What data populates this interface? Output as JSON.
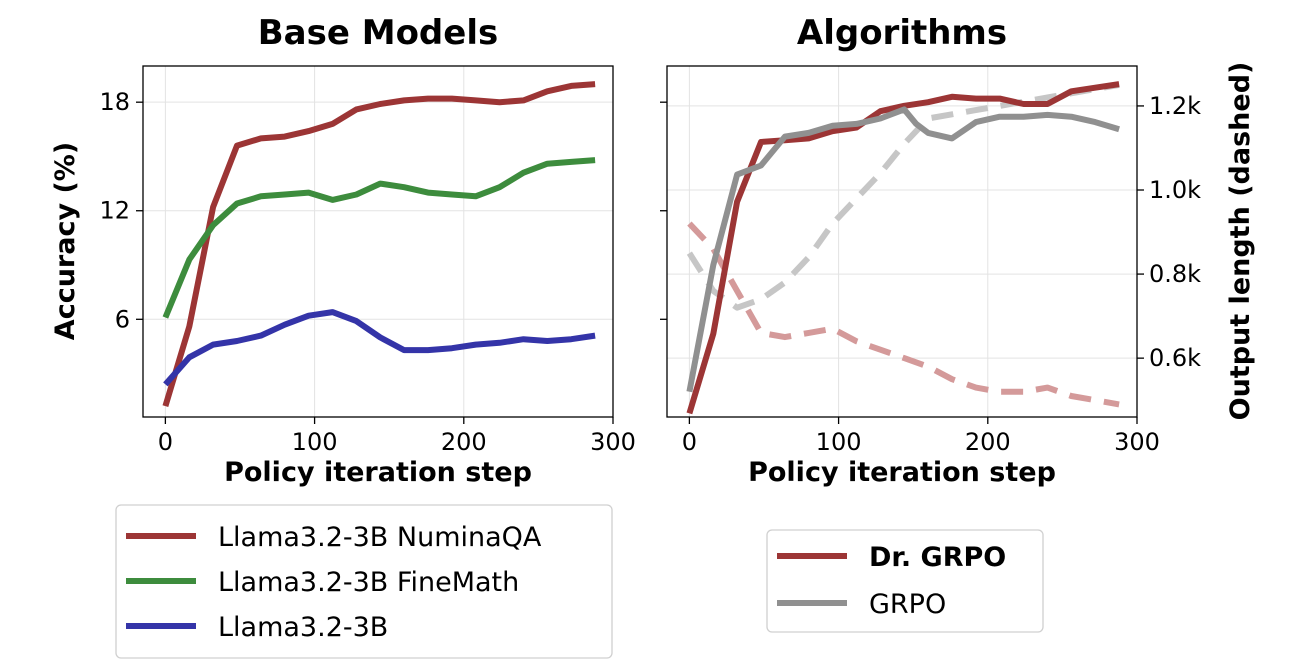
{
  "chart_data": [
    {
      "type": "line",
      "title": "Base Models",
      "xlabel": "Policy iteration step",
      "ylabel": "Accuracy (%)",
      "xlim": [
        -15,
        300
      ],
      "ylim": [
        0.6,
        20.0
      ],
      "xticks": [
        0,
        100,
        200,
        300
      ],
      "yticks": [
        6,
        12,
        18
      ],
      "grid": true,
      "legend": "below",
      "series": [
        {
          "name": "Llama3.2-3B NuminaQA",
          "color": "#9c3535",
          "x": [
            0,
            16,
            32,
            48,
            64,
            80,
            96,
            112,
            128,
            144,
            160,
            176,
            192,
            208,
            224,
            240,
            256,
            272,
            288
          ],
          "y": [
            1.2,
            5.6,
            12.2,
            15.6,
            16.0,
            16.1,
            16.4,
            16.8,
            17.6,
            17.9,
            18.1,
            18.2,
            18.2,
            18.1,
            18.0,
            18.1,
            18.6,
            18.9,
            19.0
          ]
        },
        {
          "name": "Llama3.2-3B FineMath",
          "color": "#3d8c3d",
          "x": [
            0,
            16,
            32,
            48,
            64,
            80,
            96,
            112,
            128,
            144,
            160,
            176,
            192,
            208,
            224,
            240,
            256,
            272,
            288
          ],
          "y": [
            6.1,
            9.3,
            11.2,
            12.4,
            12.8,
            12.9,
            13.0,
            12.6,
            12.9,
            13.5,
            13.3,
            13.0,
            12.9,
            12.8,
            13.3,
            14.1,
            14.6,
            14.7,
            14.8
          ]
        },
        {
          "name": "Llama3.2-3B",
          "color": "#3434a8",
          "x": [
            0,
            16,
            32,
            48,
            64,
            80,
            96,
            112,
            128,
            144,
            160,
            176,
            192,
            208,
            224,
            240,
            256,
            272,
            288
          ],
          "y": [
            2.4,
            3.9,
            4.6,
            4.8,
            5.1,
            5.7,
            6.2,
            6.4,
            5.9,
            5.0,
            4.3,
            4.3,
            4.4,
            4.6,
            4.7,
            4.9,
            4.8,
            4.9,
            5.1
          ]
        }
      ]
    },
    {
      "type": "line",
      "title": "Algorithms",
      "xlabel": "Policy iteration step",
      "ylabel": "",
      "y2label": "Output length (dashed)",
      "xlim": [
        -15,
        300
      ],
      "xticks": [
        0,
        100,
        200,
        300
      ],
      "ylim": [
        0.6,
        20.0
      ],
      "y2lim": [
        0.46,
        1.295
      ],
      "y2ticks": [
        0.6,
        0.8,
        1.0,
        1.2
      ],
      "y2ticklabels": [
        "0.6k",
        "0.8k",
        "1.0k",
        "1.2k"
      ],
      "grid": true,
      "legend": "below",
      "series": [
        {
          "name": "Dr. GRPO",
          "color": "#9c3535",
          "axis": "left",
          "style": "solid",
          "x": [
            0,
            16,
            32,
            48,
            64,
            80,
            96,
            112,
            128,
            144,
            160,
            176,
            192,
            208,
            224,
            240,
            256,
            272,
            288
          ],
          "y": [
            0.8,
            5.2,
            12.5,
            15.8,
            15.9,
            16.0,
            16.4,
            16.6,
            17.5,
            17.8,
            18.0,
            18.3,
            18.2,
            18.2,
            17.9,
            17.9,
            18.6,
            18.8,
            19.0
          ]
        },
        {
          "name": "GRPO",
          "color": "#909090",
          "axis": "left",
          "style": "solid",
          "x": [
            0,
            16,
            32,
            48,
            64,
            80,
            96,
            112,
            128,
            144,
            152,
            160,
            176,
            192,
            208,
            224,
            240,
            256,
            272,
            288
          ],
          "y": [
            2.0,
            9.0,
            14.0,
            14.5,
            16.1,
            16.3,
            16.7,
            16.8,
            17.1,
            17.6,
            16.8,
            16.3,
            16.0,
            16.9,
            17.2,
            17.2,
            17.3,
            17.2,
            16.9,
            16.5
          ]
        },
        {
          "name": "Dr. GRPO",
          "color": "#d49a9a",
          "axis": "right",
          "style": "dashed",
          "x": [
            0,
            16,
            32,
            48,
            64,
            80,
            96,
            112,
            128,
            144,
            160,
            176,
            192,
            208,
            224,
            240,
            256,
            272,
            288
          ],
          "y": [
            0.92,
            0.86,
            0.76,
            0.66,
            0.65,
            0.66,
            0.67,
            0.64,
            0.62,
            0.6,
            0.58,
            0.55,
            0.53,
            0.52,
            0.52,
            0.53,
            0.51,
            0.5,
            0.49
          ]
        },
        {
          "name": "GRPO",
          "color": "#c6c6c6",
          "axis": "right",
          "style": "dashed",
          "x": [
            0,
            16,
            32,
            48,
            64,
            80,
            96,
            112,
            128,
            144,
            160,
            176,
            192,
            208,
            224,
            240,
            256,
            272,
            288
          ],
          "y": [
            0.85,
            0.76,
            0.72,
            0.74,
            0.78,
            0.84,
            0.92,
            0.98,
            1.04,
            1.11,
            1.17,
            1.18,
            1.19,
            1.2,
            1.21,
            1.22,
            1.23,
            1.24,
            1.25
          ]
        }
      ]
    }
  ],
  "legends": [
    {
      "entries": [
        {
          "label": "Llama3.2-3B NuminaQA",
          "color": "#9c3535"
        },
        {
          "label": "Llama3.2-3B FineMath",
          "color": "#3d8c3d"
        },
        {
          "label": "Llama3.2-3B",
          "color": "#3434a8"
        }
      ]
    },
    {
      "entries": [
        {
          "label": "Dr. GRPO",
          "color": "#9c3535",
          "bold": true
        },
        {
          "label": "GRPO",
          "color": "#909090",
          "bold": false
        }
      ]
    }
  ]
}
